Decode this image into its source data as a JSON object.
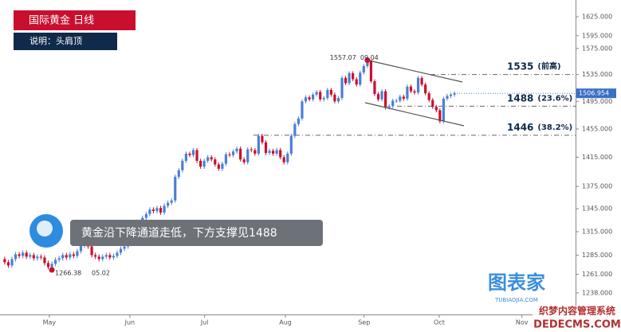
{
  "chart_data": {
    "type": "candlestick",
    "title": "国际黄金 日线",
    "subtitle": "说明：头肩顶",
    "callout": "黄金沿下降通道走低，下方支撑见1488",
    "log_scale": true,
    "up_color": "#4a7fd4",
    "down_color": "#c8102e",
    "ylim": [
      1212,
      1652
    ],
    "yticks": [
      {
        "value": 1238,
        "label": "1238.000"
      },
      {
        "value": 1261,
        "label": "1261.000"
      },
      {
        "value": 1285,
        "label": "1285.000"
      },
      {
        "value": 1315,
        "label": "1315.000"
      },
      {
        "value": 1345,
        "label": "1345.000"
      },
      {
        "value": 1375,
        "label": "1375.000"
      },
      {
        "value": 1415,
        "label": "1415.000"
      },
      {
        "value": 1455,
        "label": "1455.000"
      },
      {
        "value": 1495,
        "label": "1495.000"
      },
      {
        "value": 1535,
        "label": "1535.000"
      },
      {
        "value": 1575,
        "label": "1575.000"
      },
      {
        "value": 1595,
        "label": "1595.000"
      },
      {
        "value": 1625,
        "label": "1625.000"
      }
    ],
    "xlim": [
      -1.3,
      157.4
    ],
    "xticks": [
      {
        "value": 12.3,
        "label": "May"
      },
      {
        "value": 34.5,
        "label": "Jun"
      },
      {
        "value": 55.1,
        "label": "Jul"
      },
      {
        "value": 77.4,
        "label": "Aug"
      },
      {
        "value": 99.1,
        "label": "Sep"
      },
      {
        "value": 119.8,
        "label": "Oct"
      },
      {
        "value": 142.6,
        "label": "Nov"
      }
    ],
    "candles": [
      [
        1280,
        1283,
        1273,
        1276
      ],
      [
        1276,
        1279,
        1269,
        1272
      ],
      [
        1272,
        1283,
        1269,
        1280
      ],
      [
        1280,
        1289,
        1277,
        1286
      ],
      [
        1286,
        1289,
        1281,
        1284
      ],
      [
        1284,
        1291,
        1281,
        1288
      ],
      [
        1288,
        1291,
        1280,
        1283
      ],
      [
        1283,
        1288,
        1280,
        1285
      ],
      [
        1285,
        1288,
        1278,
        1281
      ],
      [
        1281,
        1286,
        1278,
        1283
      ],
      [
        1283,
        1286,
        1279,
        1282
      ],
      [
        1282,
        1285,
        1272,
        1275
      ],
      [
        1275,
        1278,
        1267,
        1270
      ],
      [
        1270,
        1277,
        1266.38,
        1274
      ],
      [
        1274,
        1282,
        1271,
        1279
      ],
      [
        1279,
        1284,
        1276,
        1281
      ],
      [
        1281,
        1288,
        1278,
        1285
      ],
      [
        1285,
        1288,
        1279,
        1282
      ],
      [
        1282,
        1289,
        1279,
        1286
      ],
      [
        1286,
        1289,
        1281,
        1284
      ],
      [
        1284,
        1293,
        1281,
        1290
      ],
      [
        1290,
        1300,
        1287,
        1297
      ],
      [
        1297,
        1305,
        1294,
        1302
      ],
      [
        1302,
        1305,
        1293,
        1296
      ],
      [
        1296,
        1299,
        1282,
        1285
      ],
      [
        1285,
        1288,
        1280,
        1283
      ],
      [
        1283,
        1286,
        1277,
        1280
      ],
      [
        1280,
        1286,
        1277,
        1283
      ],
      [
        1283,
        1288,
        1280,
        1285
      ],
      [
        1285,
        1288,
        1279,
        1282
      ],
      [
        1282,
        1287,
        1279,
        1284
      ],
      [
        1284,
        1291,
        1281,
        1288
      ],
      [
        1288,
        1296,
        1285,
        1293
      ],
      [
        1293,
        1299,
        1290,
        1296
      ],
      [
        1296,
        1308,
        1293,
        1305
      ],
      [
        1305,
        1315,
        1302,
        1312
      ],
      [
        1312,
        1323,
        1309,
        1320
      ],
      [
        1320,
        1329,
        1317,
        1326
      ],
      [
        1326,
        1336,
        1323,
        1333
      ],
      [
        1333,
        1341,
        1330,
        1338
      ],
      [
        1338,
        1347,
        1335,
        1344
      ],
      [
        1344,
        1347,
        1339,
        1342
      ],
      [
        1342,
        1349,
        1339,
        1346
      ],
      [
        1346,
        1349,
        1337,
        1340
      ],
      [
        1340,
        1352,
        1337,
        1349
      ],
      [
        1349,
        1356,
        1346,
        1353
      ],
      [
        1353,
        1359,
        1350,
        1356
      ],
      [
        1356,
        1391,
        1353,
        1388
      ],
      [
        1388,
        1400,
        1385,
        1397
      ],
      [
        1397,
        1413,
        1394,
        1410
      ],
      [
        1410,
        1423,
        1407,
        1420
      ],
      [
        1420,
        1423,
        1415,
        1418
      ],
      [
        1418,
        1428,
        1415,
        1425
      ],
      [
        1425,
        1428,
        1407,
        1410
      ],
      [
        1410,
        1413,
        1399,
        1402
      ],
      [
        1402,
        1413,
        1399,
        1410
      ],
      [
        1410,
        1418,
        1407,
        1415
      ],
      [
        1415,
        1418,
        1409,
        1412
      ],
      [
        1412,
        1415,
        1402,
        1405
      ],
      [
        1405,
        1408,
        1396,
        1399
      ],
      [
        1399,
        1409,
        1396,
        1406
      ],
      [
        1406,
        1422,
        1403,
        1419
      ],
      [
        1419,
        1422,
        1415,
        1418
      ],
      [
        1418,
        1426,
        1415,
        1423
      ],
      [
        1423,
        1430,
        1420,
        1427
      ],
      [
        1427,
        1430,
        1409,
        1412
      ],
      [
        1412,
        1415,
        1405,
        1408
      ],
      [
        1408,
        1429,
        1405,
        1426
      ],
      [
        1426,
        1429,
        1422,
        1425
      ],
      [
        1425,
        1428,
        1417,
        1420
      ],
      [
        1420,
        1448,
        1417,
        1445
      ],
      [
        1445,
        1448,
        1433,
        1436
      ],
      [
        1436,
        1439,
        1418,
        1421
      ],
      [
        1421,
        1427,
        1418,
        1424
      ],
      [
        1424,
        1427,
        1417,
        1420
      ],
      [
        1420,
        1428,
        1417,
        1425
      ],
      [
        1425,
        1428,
        1412,
        1415
      ],
      [
        1415,
        1418,
        1405,
        1408
      ],
      [
        1408,
        1423,
        1405,
        1420
      ],
      [
        1420,
        1448,
        1417,
        1445
      ],
      [
        1445,
        1465,
        1442,
        1462
      ],
      [
        1462,
        1473,
        1459,
        1470
      ],
      [
        1470,
        1498,
        1467,
        1495
      ],
      [
        1495,
        1504,
        1492,
        1501
      ],
      [
        1501,
        1504,
        1495,
        1498
      ],
      [
        1498,
        1508,
        1495,
        1505
      ],
      [
        1505,
        1512,
        1502,
        1509
      ],
      [
        1509,
        1512,
        1495,
        1498
      ],
      [
        1498,
        1503,
        1495,
        1500
      ],
      [
        1500,
        1515,
        1497,
        1512
      ],
      [
        1512,
        1515,
        1502,
        1505
      ],
      [
        1505,
        1508,
        1492,
        1495
      ],
      [
        1495,
        1503,
        1492,
        1500
      ],
      [
        1500,
        1533,
        1497,
        1530
      ],
      [
        1530,
        1533,
        1519,
        1522
      ],
      [
        1522,
        1540,
        1519,
        1537
      ],
      [
        1537,
        1540,
        1525,
        1528
      ],
      [
        1528,
        1531,
        1517,
        1520
      ],
      [
        1520,
        1541,
        1517,
        1538
      ],
      [
        1538,
        1551,
        1535,
        1548
      ],
      [
        1548,
        1557.07,
        1545,
        1557
      ],
      [
        1557,
        1557,
        1522,
        1525
      ],
      [
        1525,
        1528,
        1503,
        1506
      ],
      [
        1506,
        1509,
        1495,
        1498
      ],
      [
        1498,
        1513,
        1495,
        1510
      ],
      [
        1510,
        1513,
        1483,
        1486
      ],
      [
        1486,
        1491,
        1483,
        1488
      ],
      [
        1488,
        1499,
        1485,
        1496
      ],
      [
        1496,
        1499,
        1493,
        1496
      ],
      [
        1496,
        1505,
        1493,
        1502
      ],
      [
        1502,
        1505,
        1496,
        1499
      ],
      [
        1499,
        1520,
        1496,
        1517
      ],
      [
        1517,
        1520,
        1507,
        1510
      ],
      [
        1510,
        1513,
        1505,
        1508
      ],
      [
        1508,
        1533,
        1505,
        1530
      ],
      [
        1530,
        1533,
        1517,
        1520
      ],
      [
        1520,
        1523,
        1504,
        1507
      ],
      [
        1507,
        1510,
        1494,
        1497
      ],
      [
        1497,
        1500,
        1484,
        1487
      ],
      [
        1487,
        1490,
        1479,
        1482
      ],
      [
        1482,
        1485,
        1463,
        1466
      ],
      [
        1466,
        1502,
        1463,
        1499
      ],
      [
        1499,
        1506,
        1496,
        1503
      ],
      [
        1503,
        1508,
        1500,
        1505
      ],
      [
        1505,
        1510,
        1502,
        1506.954
      ]
    ],
    "peak_date": "09.04",
    "low_date": "05.02",
    "levels": [
      {
        "value": 1535,
        "note": "(前高)"
      },
      {
        "value": 1488,
        "note": "(23.6%)"
      },
      {
        "value": 1446,
        "note": "(38.2%)"
      }
    ]
  },
  "branding": {
    "logo": "图表家",
    "site": "TUBIAOJIA.COM",
    "watermark": "织梦内容管理系统",
    "watermark_site": "DEDECMS.COM"
  }
}
